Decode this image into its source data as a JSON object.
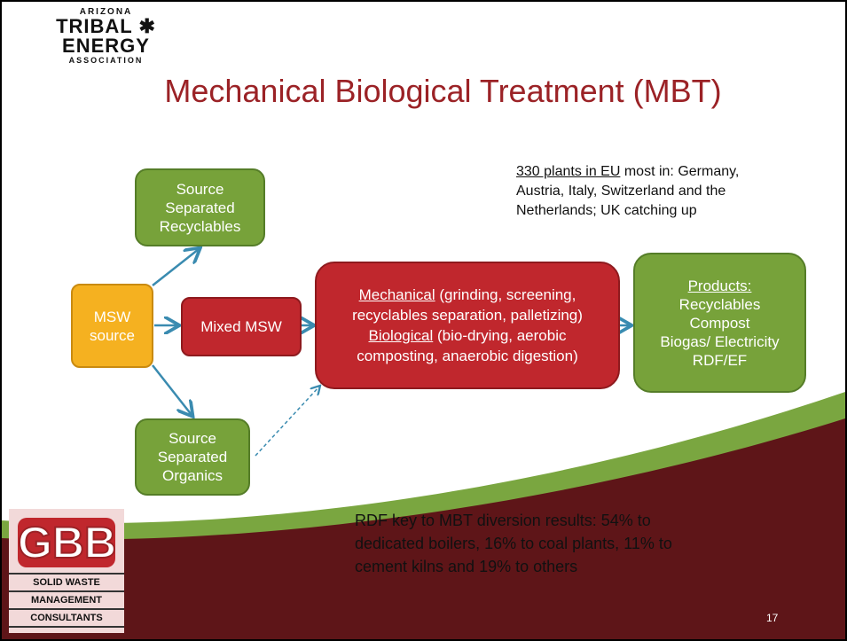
{
  "header": {
    "logo": {
      "top": "ARIZONA",
      "left": "TRIBAL",
      "right": "ENERGY",
      "bottom": "ASSOCIATION"
    },
    "title": "Mechanical Biological Treatment (MBT)"
  },
  "notes": [
    {
      "underlined": "330 plants in EU",
      "lines": [
        " most in: Germany,",
        "Austria, Italy, Switzerland and the",
        "Netherlands; UK catching up"
      ]
    },
    {
      "lines": [
        "RDF key to MBT diversion results:  54% to",
        "dedicated boilers, 16% to coal plants, 11% to",
        "cement kilns and 19% to others"
      ]
    }
  ],
  "nodes": [
    {
      "label": [
        "Source",
        "Separated",
        "Recyclables"
      ]
    },
    {
      "label": [
        "MSW",
        "source"
      ]
    },
    {
      "label": [
        "Mixed MSW"
      ]
    },
    {
      "parts": [
        {
          "underlined": "Mechanical",
          "text": " (grinding, screening,",
          "more": "recyclables separation, palletizing)"
        },
        {
          "underlined": "Biological",
          "text": " (bio-drying, aerobic",
          "more": "composting, anaerobic digestion)"
        }
      ]
    },
    {
      "heading": "Products:",
      "label": [
        "Recyclables",
        "Compost",
        "Biogas/ Electricity",
        "RDF/EF"
      ]
    },
    {
      "label": [
        "Source",
        "Separated",
        "Organics"
      ]
    }
  ],
  "footer": {
    "logo": {
      "mark": "GBB",
      "lines": [
        "SOLID WASTE",
        "MANAGEMENT",
        "CONSULTANTS"
      ]
    },
    "page_number": "17"
  }
}
